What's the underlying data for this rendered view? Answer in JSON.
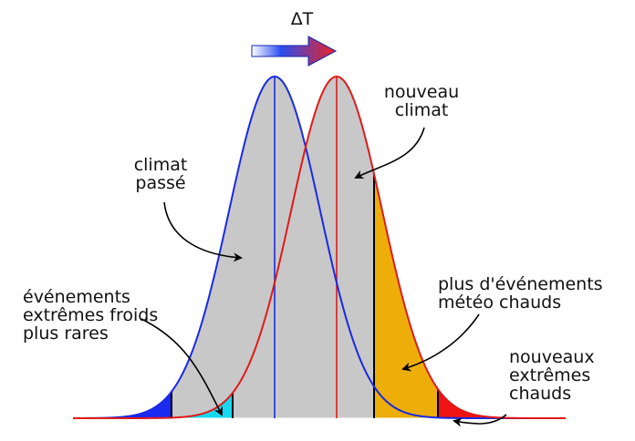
{
  "delta_t": "ΔT",
  "labels": {
    "new_climate": [
      "nouveau",
      "climat"
    ],
    "past_climate": [
      "climat",
      "passé"
    ],
    "cold_extremes": [
      "événements",
      "extrêmes froids",
      "plus rares"
    ],
    "hot_events": [
      "plus d'événements",
      "météo chauds"
    ],
    "new_hot_extremes": [
      "nouveaux",
      "extrêmes",
      "chauds"
    ]
  }
}
